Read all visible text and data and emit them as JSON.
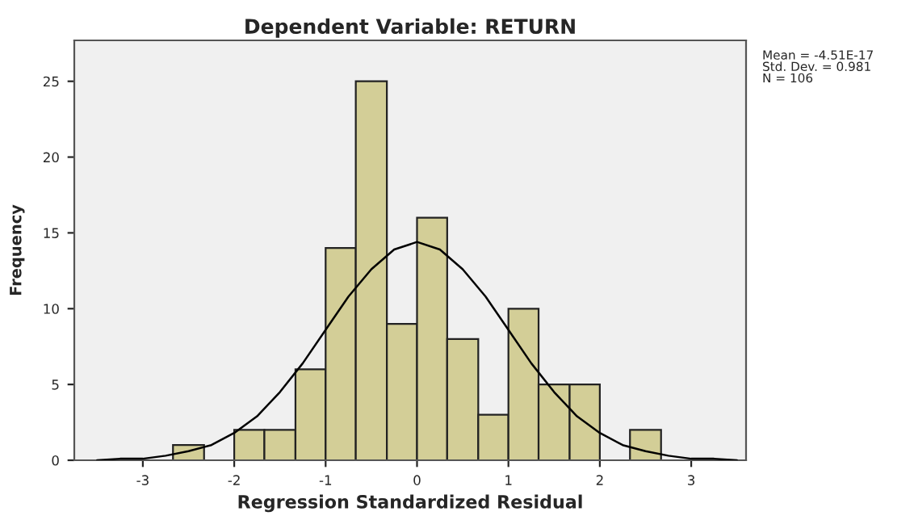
{
  "chart_data": {
    "type": "histogram",
    "title": "Dependent Variable: RETURN",
    "xlabel": "Regression Standardized Residual",
    "ylabel": "Frequency",
    "bins": [
      -2.67,
      -2.33,
      -2,
      -1.67,
      -1.33,
      -1,
      -0.67,
      -0.33,
      0,
      0.33,
      0.67,
      1,
      1.33,
      1.67,
      2,
      2.33,
      2.67
    ],
    "values": [
      1,
      0,
      2,
      2,
      6,
      14,
      25,
      9,
      16,
      8,
      3,
      10,
      5,
      5,
      0,
      2
    ],
    "color": "#d3ce97",
    "series": [
      {
        "type": "line",
        "color": "#000000",
        "x": [
          -3.5,
          -3.25,
          -3,
          -2.75,
          -2.5,
          -2.25,
          -2,
          -1.75,
          -1.5,
          -1.25,
          -1,
          -0.75,
          -0.5,
          -0.25,
          0,
          0.25,
          0.5,
          0.75,
          1,
          1.25,
          1.5,
          1.75,
          2,
          2.25,
          2.5,
          2.75,
          3,
          3.25,
          3.5
        ],
        "values": [
          0,
          0.1,
          0.1,
          0.3,
          0.6,
          1.0,
          1.8,
          2.9,
          4.5,
          6.4,
          8.6,
          10.8,
          12.6,
          13.9,
          14.4,
          13.9,
          12.6,
          10.8,
          8.6,
          6.4,
          4.5,
          2.9,
          1.8,
          1.0,
          0.6,
          0.3,
          0.1,
          0.1,
          0
        ]
      }
    ],
    "annotations": [
      "Mean = -4.51E-17\nStd. Dev. = 0.981\nN = 106"
    ],
    "xlim": [
      -3.75,
      3.6
    ],
    "ylim": [
      0,
      27.7
    ],
    "xticks": [
      -3,
      -2,
      -1,
      0,
      1,
      2,
      3
    ],
    "yticks": [
      0,
      5,
      10,
      15,
      20,
      25
    ],
    "grid": false
  }
}
